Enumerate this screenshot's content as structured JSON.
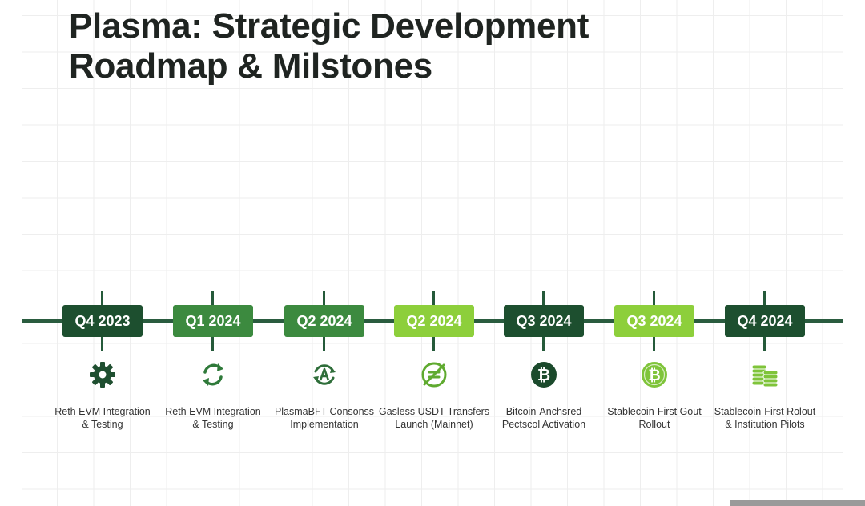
{
  "title": {
    "line1": "Plasma: Strategic Development",
    "line2": "Roadmap & Milstones"
  },
  "colors": {
    "timeline": "#2a5c3f",
    "dark_green": "#1d4f2f",
    "mid_green": "#3c8a3f",
    "light_green": "#8dcf3b",
    "grid": "#eeeeee"
  },
  "milestones": [
    {
      "date": "Q4 2023",
      "icon": "gear-icon",
      "label_line1": "Reth EVM Integration",
      "label_line2": "& Testing",
      "color": "#1d4f2f"
    },
    {
      "date": "Q1 2024",
      "icon": "sync-arrows-icon",
      "label_line1": "Reth EVM Integration",
      "label_line2": "& Testing",
      "color": "#3c8a3f"
    },
    {
      "date": "Q2 2024",
      "icon": "consensus-icon",
      "label_line1": "PlasmaBFT Consonss",
      "label_line2": "Implementation",
      "color": "#3c8a3f"
    },
    {
      "date": "Q2 2024",
      "icon": "no-fee-icon",
      "label_line1": "Gasless USDT Transfers",
      "label_line2": "Launch (Mainnet)",
      "color": "#8dcf3b"
    },
    {
      "date": "Q3 2024",
      "icon": "bitcoin-icon",
      "label_line1": "Bitcoin-Anchsred",
      "label_line2": "Pectscol Activation",
      "color": "#1d4f2f"
    },
    {
      "date": "Q3 2024",
      "icon": "bitcoin-coin-icon",
      "label_line1": "Stablecoin-First Gout",
      "label_line2": "Rollout",
      "color": "#8dcf3b"
    },
    {
      "date": "Q4 2024",
      "icon": "coin-stack-icon",
      "label_line1": "Stablecoin-First Rolout",
      "label_line2": "& Institution Pilots",
      "color": "#1d4f2f"
    }
  ]
}
